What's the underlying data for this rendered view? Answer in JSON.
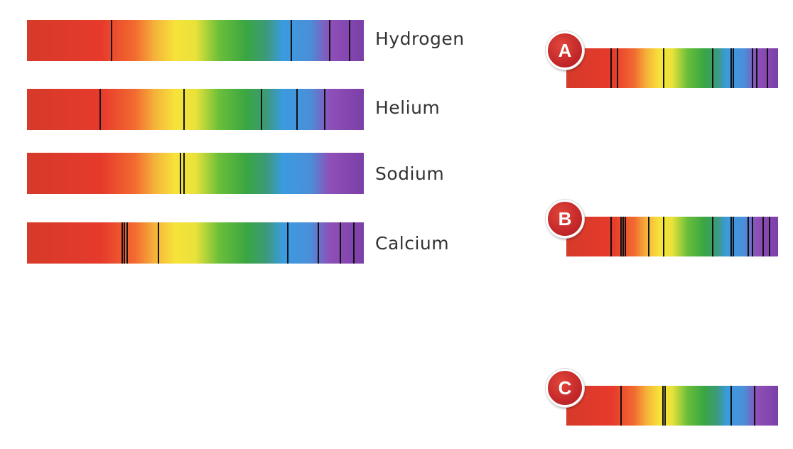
{
  "reference_spectra": [
    {
      "label": "Hydrogen",
      "lines": [
        0.25,
        0.785,
        0.898,
        0.958
      ]
    },
    {
      "label": "Helium",
      "lines": [
        0.217,
        0.466,
        0.697,
        0.801,
        0.885
      ]
    },
    {
      "label": "Sodium",
      "lines": [
        0.455,
        0.466
      ]
    },
    {
      "label": "Calcium",
      "lines": [
        0.283,
        0.29,
        0.297,
        0.39,
        0.775,
        0.865,
        0.93,
        0.97
      ]
    }
  ],
  "unknown_spectra": [
    {
      "badge": "A",
      "lines": [
        0.21,
        0.24,
        0.46,
        0.69,
        0.78,
        0.79,
        0.88,
        0.9,
        0.95
      ]
    },
    {
      "badge": "B",
      "lines": [
        0.21,
        0.26,
        0.27,
        0.28,
        0.39,
        0.46,
        0.69,
        0.78,
        0.79,
        0.86,
        0.88,
        0.93,
        0.96
      ]
    },
    {
      "badge": "C",
      "lines": [
        0.26,
        0.455,
        0.465,
        0.78,
        0.89
      ]
    }
  ]
}
